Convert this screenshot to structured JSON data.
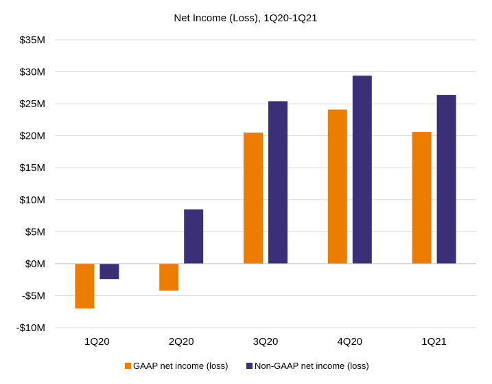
{
  "chart_data": {
    "type": "bar",
    "title": "Net Income (Loss), 1Q20-1Q21",
    "xlabel": "",
    "ylabel": "",
    "categories": [
      "1Q20",
      "2Q20",
      "3Q20",
      "4Q20",
      "1Q21"
    ],
    "series": [
      {
        "name": "GAAP net income (loss)",
        "color": "#ed7d00",
        "values": [
          -7.0,
          -4.2,
          20.5,
          24.1,
          20.6
        ]
      },
      {
        "name": "Non-GAAP net income (loss)",
        "color": "#3b2f78",
        "values": [
          -2.4,
          8.5,
          25.4,
          29.4,
          26.4
        ]
      }
    ],
    "ylim": [
      -10,
      35
    ],
    "yticks": [
      -10,
      -5,
      0,
      5,
      10,
      15,
      20,
      25,
      30,
      35
    ],
    "ytick_labels": [
      "-$10M",
      "-$5M",
      "$0M",
      "$5M",
      "$10M",
      "$15M",
      "$20M",
      "$25M",
      "$30M",
      "$35M"
    ],
    "grid": true,
    "legend": "bottom"
  }
}
